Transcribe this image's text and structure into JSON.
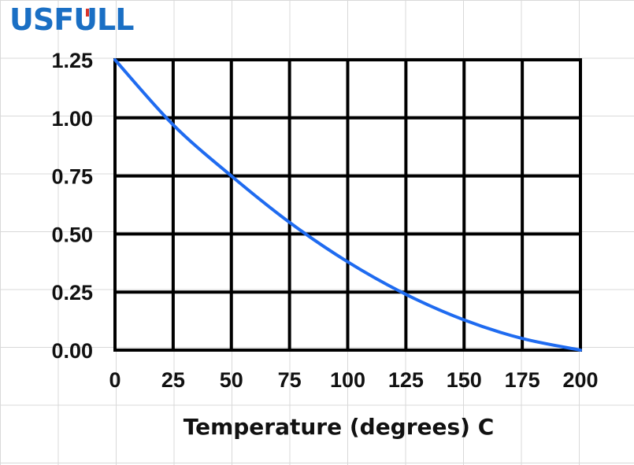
{
  "logo": {
    "text": "USFULL",
    "color": "#1a6fc4",
    "accent_color": "#d9342b"
  },
  "chart_data": {
    "type": "line",
    "title": "",
    "xlabel": "Temperature (degrees) C",
    "ylabel": "",
    "xlim": [
      0,
      200
    ],
    "ylim": [
      0,
      1.25
    ],
    "xticks": [
      "0",
      "25",
      "50",
      "75",
      "100",
      "125",
      "150",
      "175",
      "200"
    ],
    "yticks": [
      "1.25",
      "1.00",
      "0.75",
      "0.50",
      "0.25",
      "0.00"
    ],
    "grid": true,
    "series": [
      {
        "color": "#1f6bf0",
        "x": [
          0,
          25,
          50,
          75,
          100,
          125,
          150,
          175,
          200
        ],
        "y": [
          1.25,
          0.97,
          0.75,
          0.55,
          0.38,
          0.24,
          0.13,
          0.05,
          0.0
        ]
      }
    ]
  }
}
